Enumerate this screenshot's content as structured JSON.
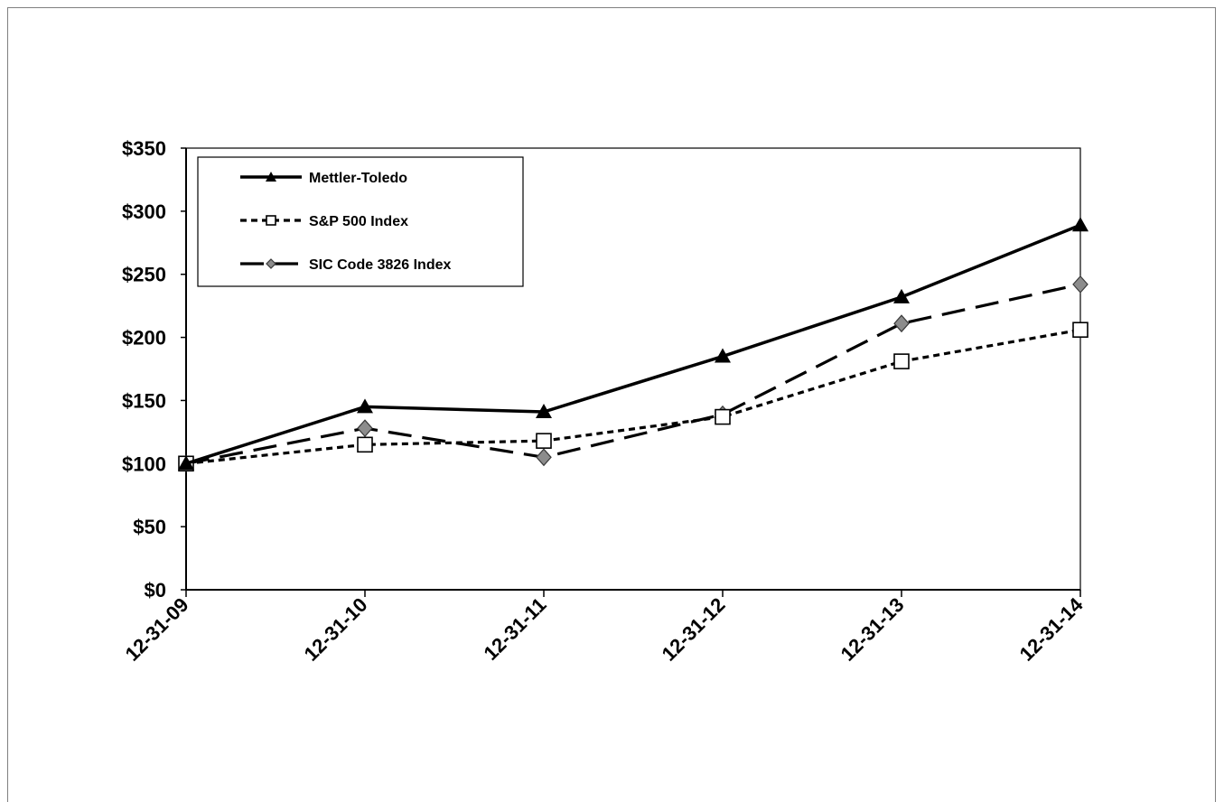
{
  "chart_data": {
    "type": "line",
    "title": "",
    "xlabel": "",
    "ylabel": "",
    "categories": [
      "12-31-09",
      "12-31-10",
      "12-31-11",
      "12-31-12",
      "12-31-13",
      "12-31-14"
    ],
    "ylim": [
      0,
      350
    ],
    "y_ticks": [
      "$0",
      "$50",
      "$100",
      "$150",
      "$200",
      "$250",
      "$300",
      "$350"
    ],
    "y_tick_values": [
      0,
      50,
      100,
      150,
      200,
      250,
      300,
      350
    ],
    "grid": false,
    "legend_position": "top-left",
    "series": [
      {
        "name": "Mettler-Toledo",
        "values": [
          100,
          145,
          141,
          185,
          232,
          289
        ],
        "color": "#000000",
        "marker": "triangle",
        "line_style": "solid"
      },
      {
        "name": "S&P 500 Index",
        "values": [
          100,
          115,
          118,
          137,
          181,
          206
        ],
        "color": "#000000",
        "marker": "square-open",
        "line_style": "dotted"
      },
      {
        "name": "SIC Code 3826 Index",
        "values": [
          100,
          128,
          105,
          139,
          211,
          242
        ],
        "color": "#000000",
        "marker": "diamond-gray",
        "line_style": "dashed"
      }
    ]
  }
}
